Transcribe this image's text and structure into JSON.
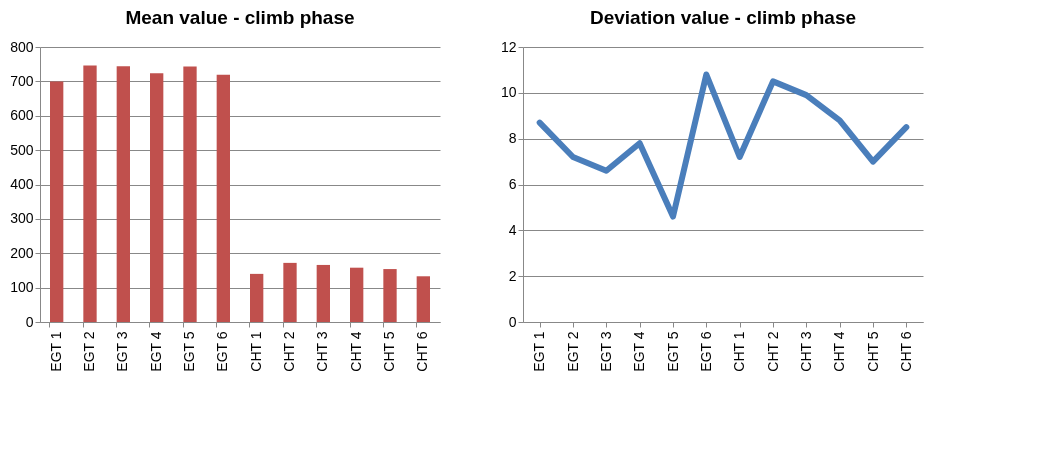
{
  "chart_data": [
    {
      "type": "bar",
      "title": "Mean value - climb phase",
      "categories": [
        "EGT 1",
        "EGT 2",
        "EGT 3",
        "EGT 4",
        "EGT 5",
        "EGT 6",
        "CHT 1",
        "CHT 2",
        "CHT 3",
        "CHT 4",
        "CHT 5",
        "CHT 6"
      ],
      "series": [
        {
          "color": "#c0504d",
          "values": [
            700,
            746,
            744,
            724,
            743,
            719,
            140,
            172,
            166,
            158,
            154,
            133
          ]
        }
      ],
      "ylim": [
        0,
        800
      ],
      "yticks": [
        0,
        100,
        200,
        300,
        400,
        500,
        600,
        700,
        800
      ],
      "grid": "y",
      "legend": false
    },
    {
      "type": "line",
      "title": "Deviation value - climb phase",
      "categories": [
        "EGT 1",
        "EGT 2",
        "EGT 3",
        "EGT 4",
        "EGT 5",
        "EGT 6",
        "CHT 1",
        "CHT 2",
        "CHT 3",
        "CHT 4",
        "CHT 5",
        "CHT 6"
      ],
      "series": [
        {
          "color": "#4a7ebb",
          "values": [
            8.7,
            7.2,
            6.6,
            7.8,
            4.6,
            10.8,
            7.2,
            10.5,
            9.9,
            8.8,
            7.0,
            8.5
          ]
        }
      ],
      "ylim": [
        0,
        12
      ],
      "yticks": [
        0,
        2,
        4,
        6,
        8,
        10,
        12
      ],
      "grid": "y",
      "legend": false,
      "marker": "none"
    }
  ]
}
